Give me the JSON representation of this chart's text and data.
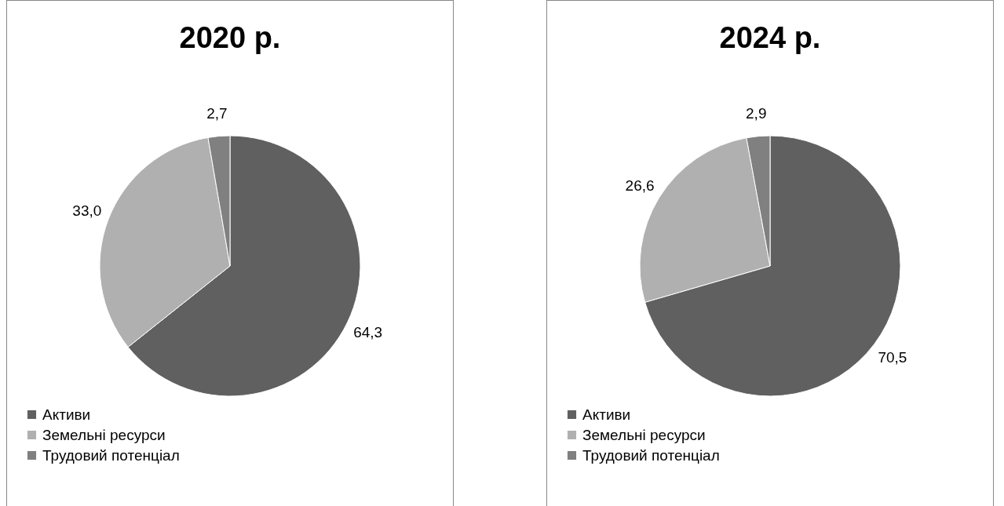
{
  "chart_data": [
    {
      "type": "pie",
      "title": "2020 р.",
      "categories": [
        "Активи",
        "Земельні ресурси",
        "Трудовий потенціал"
      ],
      "values": [
        64.3,
        33.0,
        2.7
      ],
      "value_labels": [
        "64,3",
        "33,0",
        "2,7"
      ],
      "colors": [
        "#606060",
        "#b0b0b0",
        "#808080"
      ],
      "legend": "bottom left"
    },
    {
      "type": "pie",
      "title": "2024 р.",
      "categories": [
        "Активи",
        "Земельні ресурси",
        "Трудовий потенціал"
      ],
      "values": [
        70.5,
        26.6,
        2.9
      ],
      "value_labels": [
        "70,5",
        "26,6",
        "2,9"
      ],
      "colors": [
        "#606060",
        "#b0b0b0",
        "#808080"
      ],
      "legend": "bottom left"
    }
  ]
}
